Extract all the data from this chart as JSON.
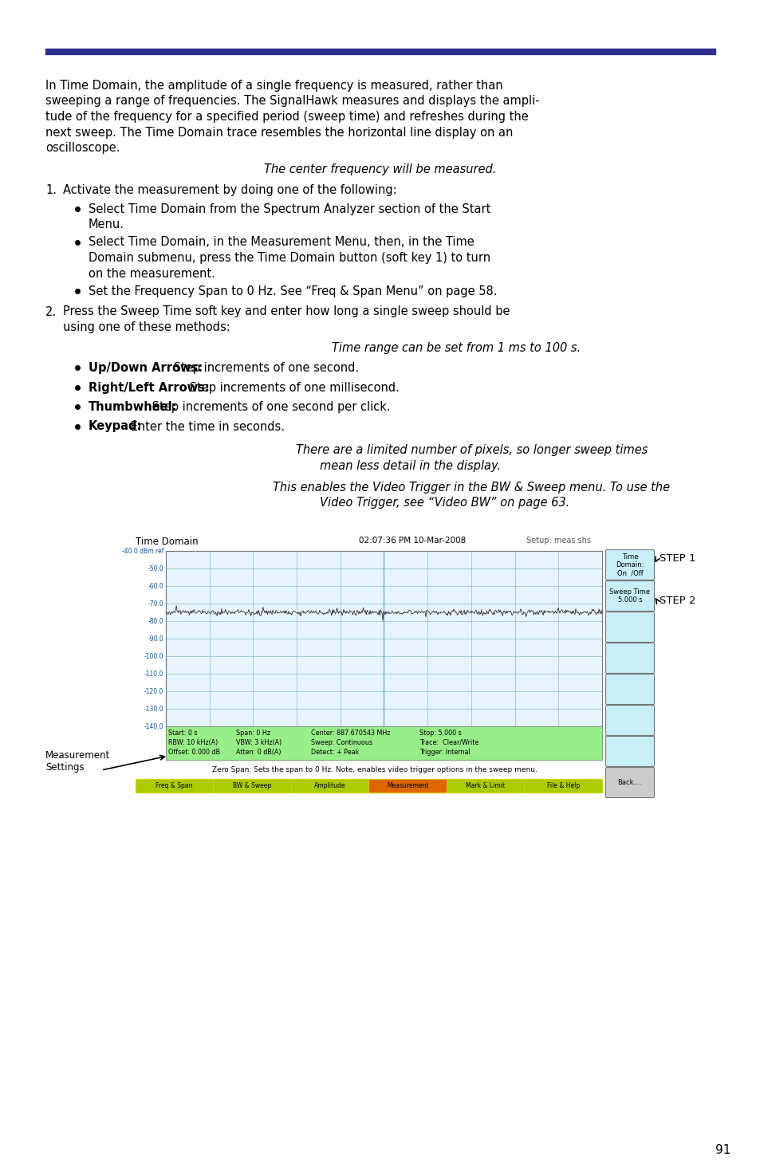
{
  "page_number": "91",
  "header_bar_color": "#2e2e8c",
  "body_text_lines": [
    "In Time Domain, the amplitude of a single frequency is measured, rather than",
    "sweeping a range of frequencies. The SignalHawk measures and displays the ampli-",
    "tude of the frequency for a specified period (sweep time) and refreshes during the",
    "next sweep. The Time Domain trace resembles the horizontal line display on an",
    "oscilloscope."
  ],
  "italic_note1": "The center frequency will be measured.",
  "step1_label": "1.",
  "step1_text": "Activate the measurement by doing one of the following:",
  "bullet1a_lines": [
    "Select Time Domain from the Spectrum Analyzer section of the Start",
    "Menu."
  ],
  "bullet1b_lines": [
    "Select Time Domain, in the Measurement Menu, then, in the Time",
    "Domain submenu, press the Time Domain button (soft key 1) to turn",
    "on the measurement."
  ],
  "bullet1c": "Set the Frequency Span to 0 Hz. See “Freq & Span Menu” on page 58.",
  "step2_label": "2.",
  "step2_text_lines": [
    "Press the Sweep Time soft key and enter how long a single sweep should be",
    "using one of these methods:"
  ],
  "italic_note2": "Time range can be set from 1 ms to 100 s.",
  "bullet2a_bold": "Up/Down Arrows:",
  "bullet2a_rest": " Step increments of one second.",
  "bullet2b_bold": "Right/Left Arrows:",
  "bullet2b_rest": " Step increments of one millisecond.",
  "bullet2c_bold": "Thumbwheel:",
  "bullet2c_rest": " Step increments of one second per click.",
  "bullet2d_bold": "Keypad:",
  "bullet2d_rest": " Enter the time in seconds.",
  "italic_note3_lines": [
    "There are a limited number of pixels, so longer sweep times",
    "mean less detail in the display."
  ],
  "italic_note4_lines": [
    "This enables the Video Trigger in the BW & Sweep menu. To use the",
    "Video Trigger, see “Video BW” on page 63."
  ],
  "ss_title": "Time Domain",
  "ss_datetime": "02:07:36 PM 10-Mar-2008",
  "ss_setup": "Setup: meas.shs",
  "ss_ylabel_values": [
    "-40.0 dBm ref",
    "-50.0",
    "-60.0",
    "-70.0",
    "-80.0",
    "-90.0",
    "-100.0",
    "-110.0",
    "-120.0",
    "-130.0",
    "-140.0"
  ],
  "ss_status1": [
    "Start: 0 s",
    "Span: 0 Hz",
    "Center: 887.670543 MHz",
    "Stop: 5.000 s"
  ],
  "ss_status2": [
    "RBW: 10 kHz(A)",
    "VBW: 3 kHz(A)",
    "Sweep: Continuous",
    "Trace:  Clear/Write"
  ],
  "ss_status3": [
    "Offset: 0.000 dB",
    "Atten: 0 dB(A)",
    "Detect: + Peak",
    "Trigger: Internal"
  ],
  "softkey1": "Time\nDomain:\nOn  /Off",
  "softkey2": "Sweep Time\n5.000 s",
  "step_label1": "STEP 1",
  "step_label2": "STEP 2",
  "meas_label": "Measurement\nSettings",
  "zero_span_text": "Zero Span: Sets the span to 0 Hz. Note, enables video trigger options in the sweep menu.",
  "bottom_buttons": [
    "Freq & Span",
    "BW & Sweep",
    "Amplitude",
    "Measurement",
    "Mark & Limit",
    "File & Help"
  ],
  "bottom_btn_colors": [
    "#aacc00",
    "#aacc00",
    "#aacc00",
    "#dd6600",
    "#aacc00",
    "#aacc00"
  ],
  "softkey_bg": "#c8eef8",
  "plot_bg": "#e8f4fb",
  "grid_color": "#88bbcc",
  "status_bg": "#98ee88",
  "bottom_bg": "#dddd00"
}
